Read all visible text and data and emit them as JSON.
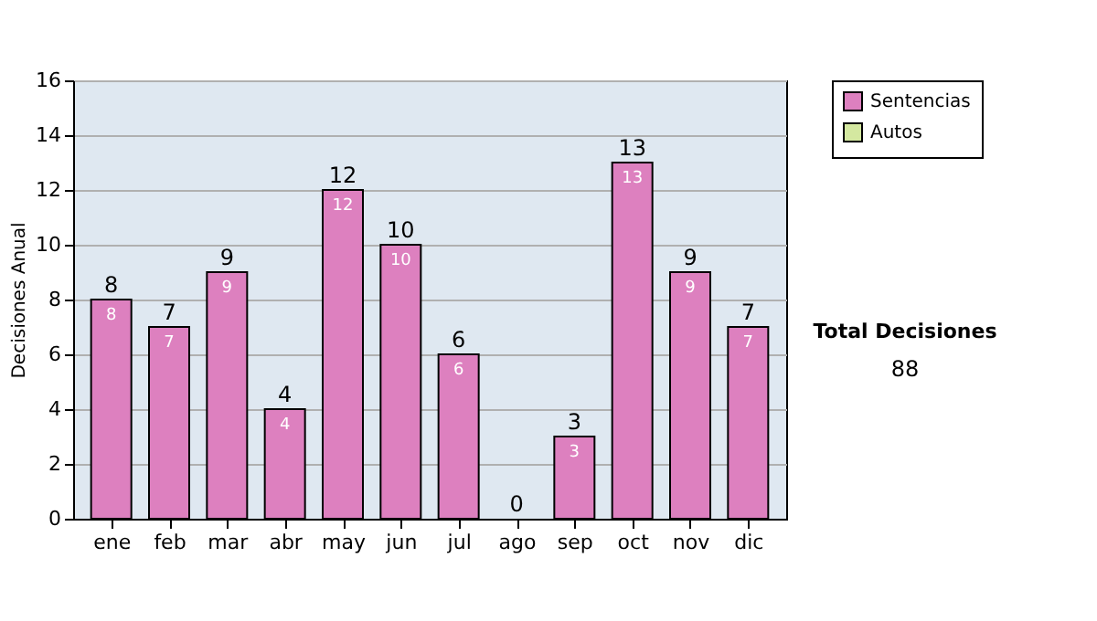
{
  "chart_data": {
    "type": "bar",
    "ylabel": "Decisiones Anual",
    "categories": [
      "ene",
      "feb",
      "mar",
      "abr",
      "may",
      "jun",
      "jul",
      "ago",
      "sep",
      "oct",
      "nov",
      "dic"
    ],
    "series": [
      {
        "name": "Sentencias",
        "color": "#dd80bf",
        "values": [
          8,
          7,
          9,
          4,
          12,
          10,
          6,
          0,
          3,
          13,
          9,
          7
        ],
        "value_labels": [
          "8",
          "7",
          "9",
          "4",
          "12",
          "10",
          "6",
          null,
          "3",
          "13",
          "9",
          "7"
        ]
      },
      {
        "name": "Autos",
        "color": "#d4e8a0",
        "values": [
          0,
          0,
          0,
          0,
          0,
          0,
          0,
          0,
          0,
          0,
          0,
          0
        ]
      }
    ],
    "stacked": true,
    "totals": [
      "8",
      "7",
      "9",
      "4",
      "12",
      "10",
      "6",
      "0",
      "3",
      "13",
      "9",
      "7"
    ],
    "ylim": [
      0,
      16
    ],
    "yticks": [
      0,
      2,
      4,
      6,
      8,
      10,
      12,
      14,
      16
    ],
    "grid": "y",
    "legend": "right",
    "annotations": [
      "Total Decisiones",
      "88"
    ]
  }
}
